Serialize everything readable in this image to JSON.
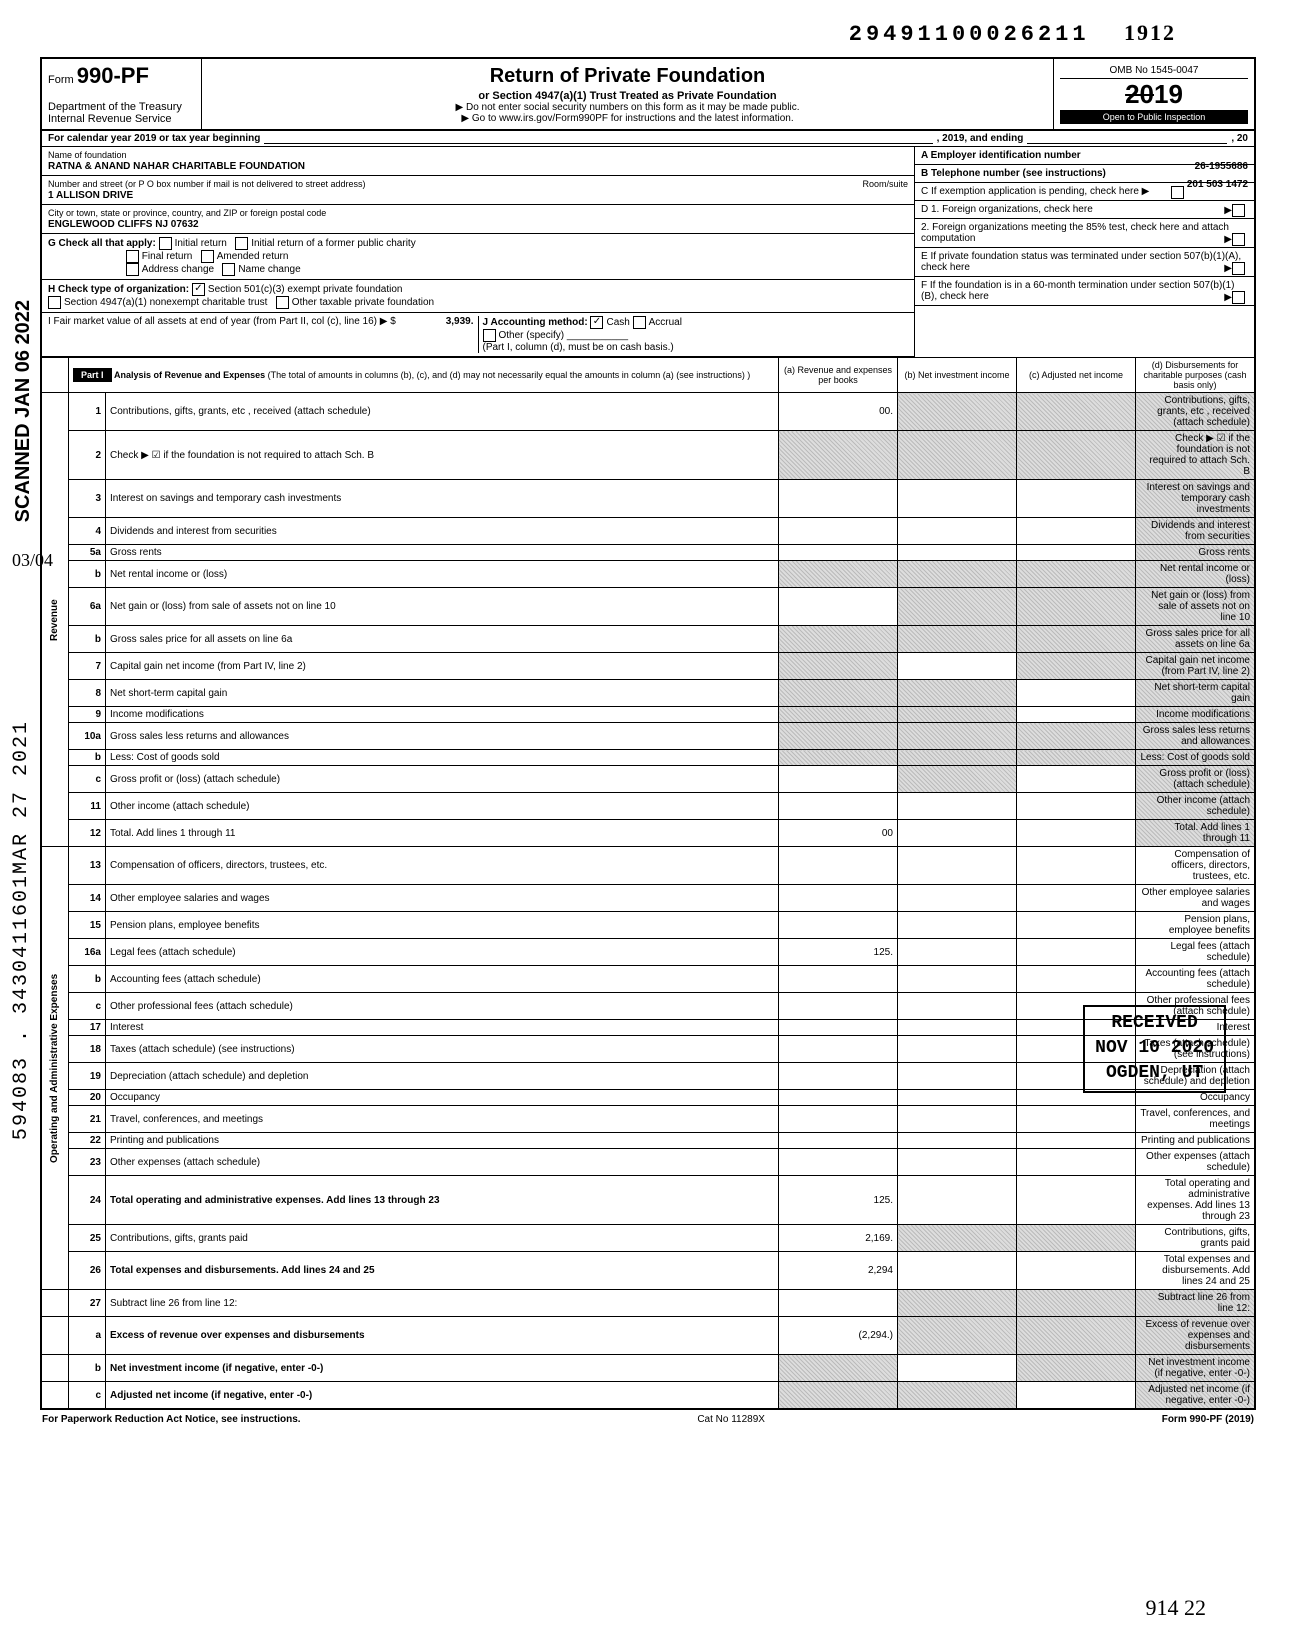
{
  "header": {
    "dln": "29491100026211",
    "hand_year": "1912",
    "form_num": "990-PF",
    "form_prefix": "Form",
    "dept1": "Department of the Treasury",
    "dept2": "Internal Revenue Service",
    "title": "Return of Private Foundation",
    "subtitle": "or Section 4947(a)(1) Trust Treated as Private Foundation",
    "warn": "▶ Do not enter social security numbers on this form as it may be made public.",
    "linkline": "▶ Go to www.irs.gov/Form990PF for instructions and the latest information.",
    "omb": "OMB No 1545-0047",
    "year_struck": "20",
    "year_big": "19",
    "open": "Open to Public Inspection",
    "cal_line": "For calendar year 2019 or tax year beginning",
    "cal_mid": ", 2019, and ending",
    "cal_end": ", 20"
  },
  "foundation": {
    "name_label": "Name of foundation",
    "name": "RATNA & ANAND NAHAR CHARITABLE FOUNDATION",
    "addr_label": "Number and street (or P O box number if mail is not delivered to street address)",
    "room_label": "Room/suite",
    "addr": "1 ALLISON DRIVE",
    "city_label": "City or town, state or province, country, and ZIP or foreign postal code",
    "city": "ENGLEWOOD CLIFFS  NJ 07632",
    "ein_label": "A  Employer identification number",
    "ein": "26-1955686",
    "phone_label": "B  Telephone number (see instructions)",
    "phone": "201 503 1472",
    "c_label": "C  If exemption application is pending, check here ▶"
  },
  "checks": {
    "g": "G  Check all that apply:",
    "g1": "Initial return",
    "g2": "Initial return of a former public charity",
    "g3": "Final return",
    "g4": "Amended return",
    "g5": "Address change",
    "g6": "Name change",
    "h": "H  Check type of organization:",
    "h1": "Section 501(c)(3) exempt private foundation",
    "h2": "Section 4947(a)(1) nonexempt charitable trust",
    "h3": "Other taxable private foundation",
    "i": "I   Fair market value of all assets at end of year (from Part II, col (c), line 16) ▶ $",
    "i_val": "3,939.",
    "j": "J  Accounting method:",
    "j1": "Cash",
    "j2": "Accrual",
    "j3": "Other (specify)",
    "j_note": "(Part I, column (d), must be on cash basis.)",
    "d1": "D  1. Foreign organizations, check here",
    "d2": "2. Foreign organizations meeting the 85% test, check here and attach computation",
    "e": "E  If private foundation status was terminated under section 507(b)(1)(A), check here",
    "f": "F  If the foundation is in a 60-month termination under section 507(b)(1)(B), check here"
  },
  "part1": {
    "label": "Part I",
    "title": "Analysis of Revenue and Expenses",
    "title_note": " (The total of amounts in columns (b), (c), and (d) may not necessarily equal the amounts in column (a) (see instructions) )",
    "cols": {
      "a": "(a) Revenue and expenses per books",
      "b": "(b) Net investment income",
      "c": "(c) Adjusted net income",
      "d": "(d) Disbursements for charitable purposes (cash basis only)"
    }
  },
  "side": {
    "rev": "Revenue",
    "exp": "Operating and Administrative Expenses"
  },
  "lines": [
    {
      "n": "1",
      "d": "Contributions, gifts, grants, etc , received (attach schedule)",
      "a": "00.",
      "sb": true,
      "sc": true,
      "sd": true
    },
    {
      "n": "2",
      "d": "Check ▶ ☑ if the foundation is not required to attach Sch. B",
      "sa": true,
      "sb": true,
      "sc": true,
      "sd": true
    },
    {
      "n": "3",
      "d": "Interest on savings and temporary cash investments",
      "sd": true
    },
    {
      "n": "4",
      "d": "Dividends and interest from securities",
      "sd": true
    },
    {
      "n": "5a",
      "d": "Gross rents",
      "sd": true
    },
    {
      "n": "b",
      "d": "Net rental income or (loss)",
      "sa": true,
      "sb": true,
      "sc": true,
      "sd": true
    },
    {
      "n": "6a",
      "d": "Net gain or (loss) from sale of assets not on line 10",
      "sb": true,
      "sc": true,
      "sd": true
    },
    {
      "n": "b",
      "d": "Gross sales price for all assets on line 6a",
      "sa": true,
      "sb": true,
      "sc": true,
      "sd": true
    },
    {
      "n": "7",
      "d": "Capital gain net income (from Part IV, line 2)",
      "sa": true,
      "sc": true,
      "sd": true
    },
    {
      "n": "8",
      "d": "Net short-term capital gain",
      "sa": true,
      "sb": true,
      "sd": true
    },
    {
      "n": "9",
      "d": "Income modifications",
      "sa": true,
      "sb": true,
      "sd": true
    },
    {
      "n": "10a",
      "d": "Gross sales less returns and allowances",
      "sa": true,
      "sb": true,
      "sc": true,
      "sd": true
    },
    {
      "n": "b",
      "d": "Less: Cost of goods sold",
      "sa": true,
      "sb": true,
      "sc": true,
      "sd": true
    },
    {
      "n": "c",
      "d": "Gross profit or (loss) (attach schedule)",
      "sb": true,
      "sd": true
    },
    {
      "n": "11",
      "d": "Other income (attach schedule)",
      "sd": true
    },
    {
      "n": "12",
      "d": "Total. Add lines 1 through 11",
      "a": "00",
      "sd": true
    }
  ],
  "exp_lines": [
    {
      "n": "13",
      "d": "Compensation of officers, directors, trustees, etc."
    },
    {
      "n": "14",
      "d": "Other employee salaries and wages"
    },
    {
      "n": "15",
      "d": "Pension plans, employee benefits"
    },
    {
      "n": "16a",
      "d": "Legal fees (attach schedule)",
      "a": "125."
    },
    {
      "n": "b",
      "d": "Accounting fees (attach schedule)"
    },
    {
      "n": "c",
      "d": "Other professional fees (attach schedule)"
    },
    {
      "n": "17",
      "d": "Interest"
    },
    {
      "n": "18",
      "d": "Taxes (attach schedule) (see instructions)"
    },
    {
      "n": "19",
      "d": "Depreciation (attach schedule) and depletion"
    },
    {
      "n": "20",
      "d": "Occupancy"
    },
    {
      "n": "21",
      "d": "Travel, conferences, and meetings"
    },
    {
      "n": "22",
      "d": "Printing and publications"
    },
    {
      "n": "23",
      "d": "Other expenses (attach schedule)"
    },
    {
      "n": "24",
      "d": "Total operating and administrative expenses. Add lines 13 through 23",
      "a": "125.",
      "bold": true
    },
    {
      "n": "25",
      "d": "Contributions, gifts, grants paid",
      "a": "2,169.",
      "sb": true,
      "sc": true
    },
    {
      "n": "26",
      "d": "Total expenses and disbursements. Add lines 24 and 25",
      "a": "2,294",
      "bold": true
    }
  ],
  "bottom_lines": [
    {
      "n": "27",
      "d": "Subtract line 26 from line 12:",
      "sb": true,
      "sc": true,
      "sd": true
    },
    {
      "n": "a",
      "d": "Excess of revenue over expenses and disbursements",
      "a": "(2,294.)",
      "sb": true,
      "sc": true,
      "sd": true,
      "bold": true
    },
    {
      "n": "b",
      "d": "Net investment income (if negative, enter -0-)",
      "sa": true,
      "sc": true,
      "sd": true,
      "bold": true
    },
    {
      "n": "c",
      "d": "Adjusted net income (if negative, enter -0-)",
      "sa": true,
      "sb": true,
      "sd": true,
      "bold": true
    }
  ],
  "footer": {
    "left": "For Paperwork Reduction Act Notice, see instructions.",
    "mid": "Cat No 11289X",
    "right": "Form 990-PF (2019)"
  },
  "stamps": {
    "scanned": "SCANNED JAN 06 2022",
    "dln_side": "594083 . 3430411601MAR 27 2021",
    "frac": "03/04",
    "received1": "RECEIVED",
    "received2": "NOV 10 2020",
    "received3": "OGDEN, UT",
    "hand": "914   22"
  }
}
